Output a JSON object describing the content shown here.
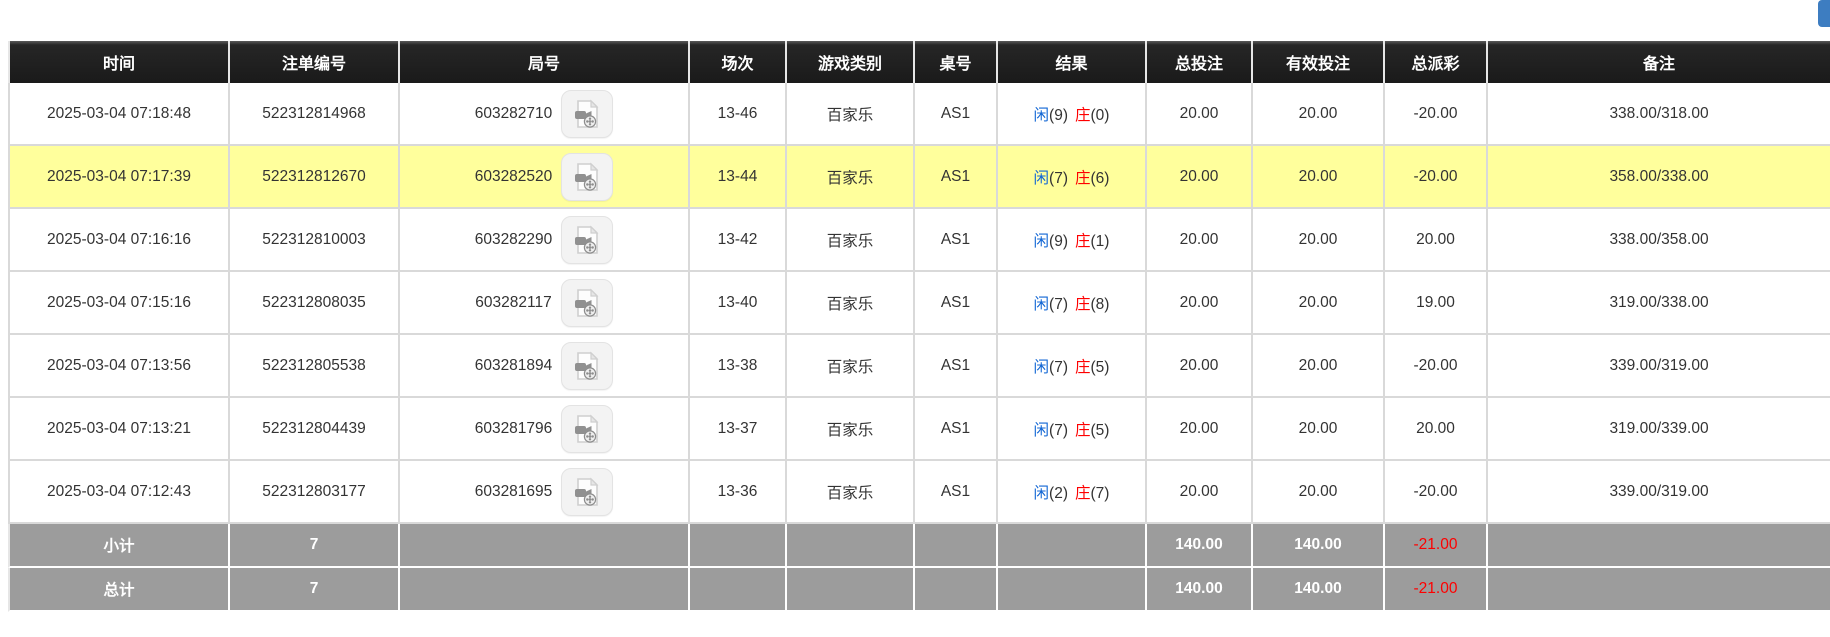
{
  "colors": {
    "header_bg": "#1a1a1a",
    "grid_line": "#d9d9d9",
    "accent_blue": "#1166d4",
    "negative_red": "#fe0000",
    "highlight_yellow": "#ffff9c",
    "summary_gray": "#9c9c9c",
    "top_button_blue": "#3d7dc1"
  },
  "top_right_partial_button": {
    "icon": "partial-blue-button"
  },
  "table": {
    "columns": [
      {
        "key": "time",
        "label": "时间"
      },
      {
        "key": "bet_id",
        "label": "注单编号"
      },
      {
        "key": "round_id",
        "label": "局号"
      },
      {
        "key": "session",
        "label": "场次"
      },
      {
        "key": "game_type",
        "label": "游戏类别"
      },
      {
        "key": "table_no",
        "label": "桌号"
      },
      {
        "key": "result",
        "label": "结果"
      },
      {
        "key": "total_bet",
        "label": "总投注"
      },
      {
        "key": "valid_bet",
        "label": "有效投注"
      },
      {
        "key": "payout",
        "label": "总派彩"
      },
      {
        "key": "remark",
        "label": "备注"
      }
    ],
    "video_icon": "video-replay-icon",
    "rows": [
      {
        "time": "2025-03-04 07:18:48",
        "bet_id": "522312814968",
        "round_id": "603282710",
        "session": "13-46",
        "game_type": "百家乐",
        "table_no": "AS1",
        "result": {
          "player_label": "闲",
          "player_score": "9",
          "banker_label": "庄",
          "banker_score": "0"
        },
        "total_bet": "20.00",
        "valid_bet": "20.00",
        "total_payout": "-20.00",
        "payout_negative": true,
        "remark": "338.00/318.00",
        "highlighted": false
      },
      {
        "time": "2025-03-04 07:17:39",
        "bet_id": "522312812670",
        "round_id": "603282520",
        "session": "13-44",
        "game_type": "百家乐",
        "table_no": "AS1",
        "result": {
          "player_label": "闲",
          "player_score": "7",
          "banker_label": "庄",
          "banker_score": "6"
        },
        "total_bet": "20.00",
        "valid_bet": "20.00",
        "total_payout": "-20.00",
        "payout_negative": true,
        "remark": "358.00/338.00",
        "highlighted": true
      },
      {
        "time": "2025-03-04 07:16:16",
        "bet_id": "522312810003",
        "round_id": "603282290",
        "session": "13-42",
        "game_type": "百家乐",
        "table_no": "AS1",
        "result": {
          "player_label": "闲",
          "player_score": "9",
          "banker_label": "庄",
          "banker_score": "1"
        },
        "total_bet": "20.00",
        "valid_bet": "20.00",
        "total_payout": "20.00",
        "payout_negative": false,
        "remark": "338.00/358.00",
        "highlighted": false
      },
      {
        "time": "2025-03-04 07:15:16",
        "bet_id": "522312808035",
        "round_id": "603282117",
        "session": "13-40",
        "game_type": "百家乐",
        "table_no": "AS1",
        "result": {
          "player_label": "闲",
          "player_score": "7",
          "banker_label": "庄",
          "banker_score": "8"
        },
        "total_bet": "20.00",
        "valid_bet": "20.00",
        "total_payout": "19.00",
        "payout_negative": false,
        "remark": "319.00/338.00",
        "highlighted": false
      },
      {
        "time": "2025-03-04 07:13:56",
        "bet_id": "522312805538",
        "round_id": "603281894",
        "session": "13-38",
        "game_type": "百家乐",
        "table_no": "AS1",
        "result": {
          "player_label": "闲",
          "player_score": "7",
          "banker_label": "庄",
          "banker_score": "5"
        },
        "total_bet": "20.00",
        "valid_bet": "20.00",
        "total_payout": "-20.00",
        "payout_negative": true,
        "remark": "339.00/319.00",
        "highlighted": false
      },
      {
        "time": "2025-03-04 07:13:21",
        "bet_id": "522312804439",
        "round_id": "603281796",
        "session": "13-37",
        "game_type": "百家乐",
        "table_no": "AS1",
        "result": {
          "player_label": "闲",
          "player_score": "7",
          "banker_label": "庄",
          "banker_score": "5"
        },
        "total_bet": "20.00",
        "valid_bet": "20.00",
        "total_payout": "20.00",
        "payout_negative": false,
        "remark": "319.00/339.00",
        "highlighted": false
      },
      {
        "time": "2025-03-04 07:12:43",
        "bet_id": "522312803177",
        "round_id": "603281695",
        "session": "13-36",
        "game_type": "百家乐",
        "table_no": "AS1",
        "result": {
          "player_label": "闲",
          "player_score": "2",
          "banker_label": "庄",
          "banker_score": "7"
        },
        "total_bet": "20.00",
        "valid_bet": "20.00",
        "total_payout": "-20.00",
        "payout_negative": true,
        "remark": "339.00/319.00",
        "highlighted": false
      }
    ],
    "summary_rows": [
      {
        "label": "小计",
        "count": "7",
        "total_bet": "140.00",
        "valid_bet": "140.00",
        "total_payout": "-21.00"
      },
      {
        "label": "总计",
        "count": "7",
        "total_bet": "140.00",
        "valid_bet": "140.00",
        "total_payout": "-21.00"
      }
    ]
  }
}
